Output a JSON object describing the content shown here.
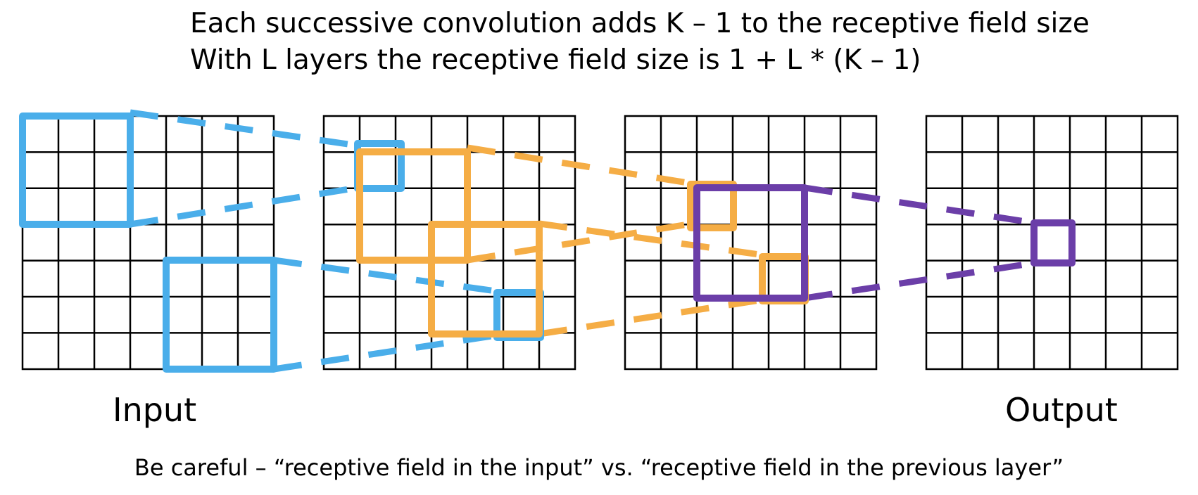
{
  "header": {
    "line1": "Each successive convolution adds K – 1 to the receptive field size",
    "line2": "With L layers the receptive field size is 1 + L * (K – 1)"
  },
  "labels": {
    "input": "Input",
    "output": "Output"
  },
  "footer": "Be careful – “receptive field in the input” vs. “receptive field in the previous layer”",
  "diagram": {
    "grid_count": 4,
    "grid_size": 7,
    "colors": {
      "layer1": "#4aaeea",
      "layer2": "#f5ad45",
      "layer3": "#6b3ea8",
      "grid": "#000000"
    }
  }
}
